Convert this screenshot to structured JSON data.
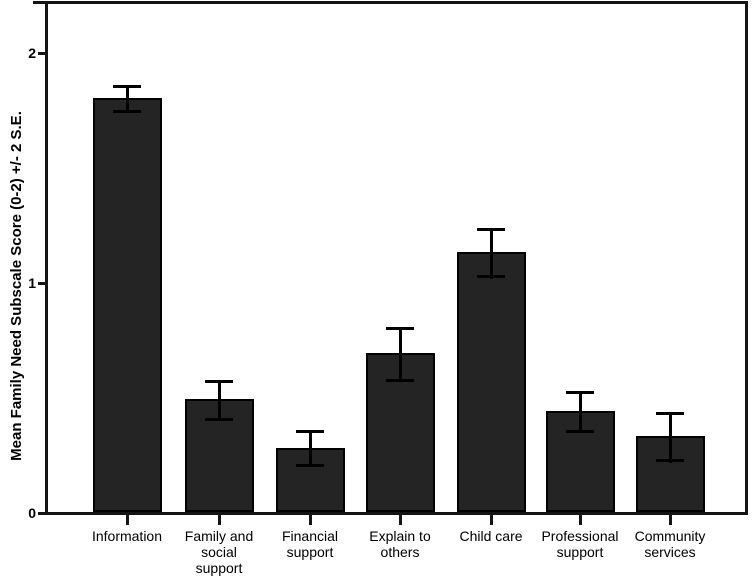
{
  "chart_data": {
    "type": "bar",
    "title": "",
    "xlabel": "",
    "ylabel": "Mean Family Need Subscale Score (0-2) +/- 2 S.E.",
    "categories": [
      "Information",
      "Family and\nsocial\nsupport",
      "Financial\nsupport",
      "Explain to\nothers",
      "Child care",
      "Professional\nsupport",
      "Community\nservices"
    ],
    "values": [
      1.8,
      0.49,
      0.28,
      0.69,
      1.13,
      0.44,
      0.33
    ],
    "errors_plus_minus": [
      0.06,
      0.09,
      0.08,
      0.12,
      0.11,
      0.09,
      0.11
    ],
    "error_bar_meaning": "+/- 2 S.E.",
    "yticks": [
      "2",
      "1",
      "0"
    ],
    "ytick_values": [
      2,
      1,
      0
    ],
    "ylim": [
      0,
      2.22
    ],
    "grid": "off",
    "legend": "none",
    "bar_color": "#242424",
    "bar_border_color": "#000000",
    "error_bar_color": "#000000",
    "axis_color": "#141414",
    "background_color": "#ffffff"
  }
}
